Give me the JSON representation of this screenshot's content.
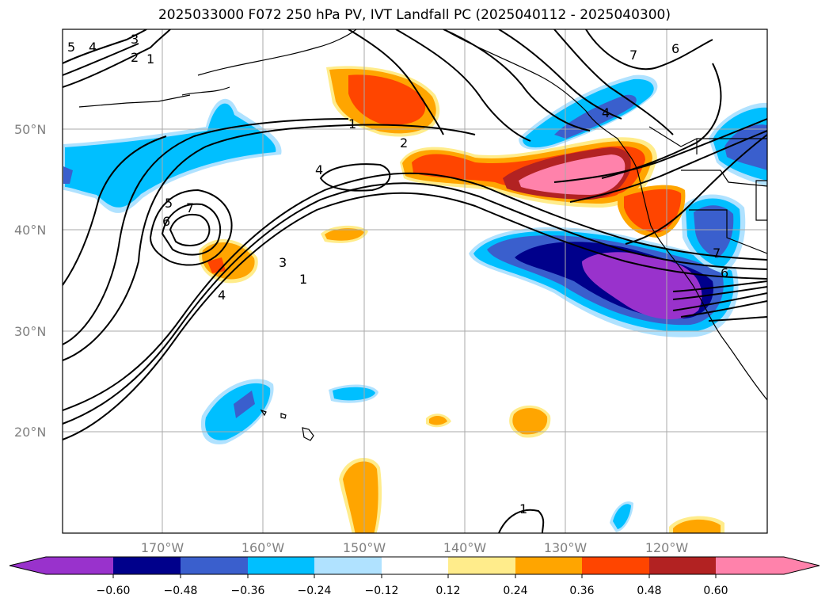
{
  "title": "2025033000 F072 250 hPa PV, IVT Landfall PC (2025040112 - 2025040300)",
  "latitudes": [
    {
      "label": "50°N"
    },
    {
      "label": "40°N"
    },
    {
      "label": "30°N"
    },
    {
      "label": "20°N"
    }
  ],
  "longitudes": [
    {
      "label": "170°W"
    },
    {
      "label": "160°W"
    },
    {
      "label": "150°W"
    },
    {
      "label": "140°W"
    },
    {
      "label": "130°W"
    },
    {
      "label": "120°W"
    }
  ],
  "colorbar": {
    "ticks": [
      "−0.60",
      "−0.48",
      "−0.36",
      "−0.24",
      "−0.12",
      "0.12",
      "0.24",
      "0.36",
      "0.48",
      "0.60"
    ],
    "colors": [
      "#9932cc",
      "#00008b",
      "#3a5fcd",
      "#00bfff",
      "#b0e2ff",
      "#ffffff",
      "#ffec8b",
      "#ffa500",
      "#ff4500",
      "#b22222",
      "#ff82ab"
    ]
  },
  "contour_labels": [
    "1",
    "2",
    "3",
    "4",
    "5",
    "6",
    "7"
  ]
}
